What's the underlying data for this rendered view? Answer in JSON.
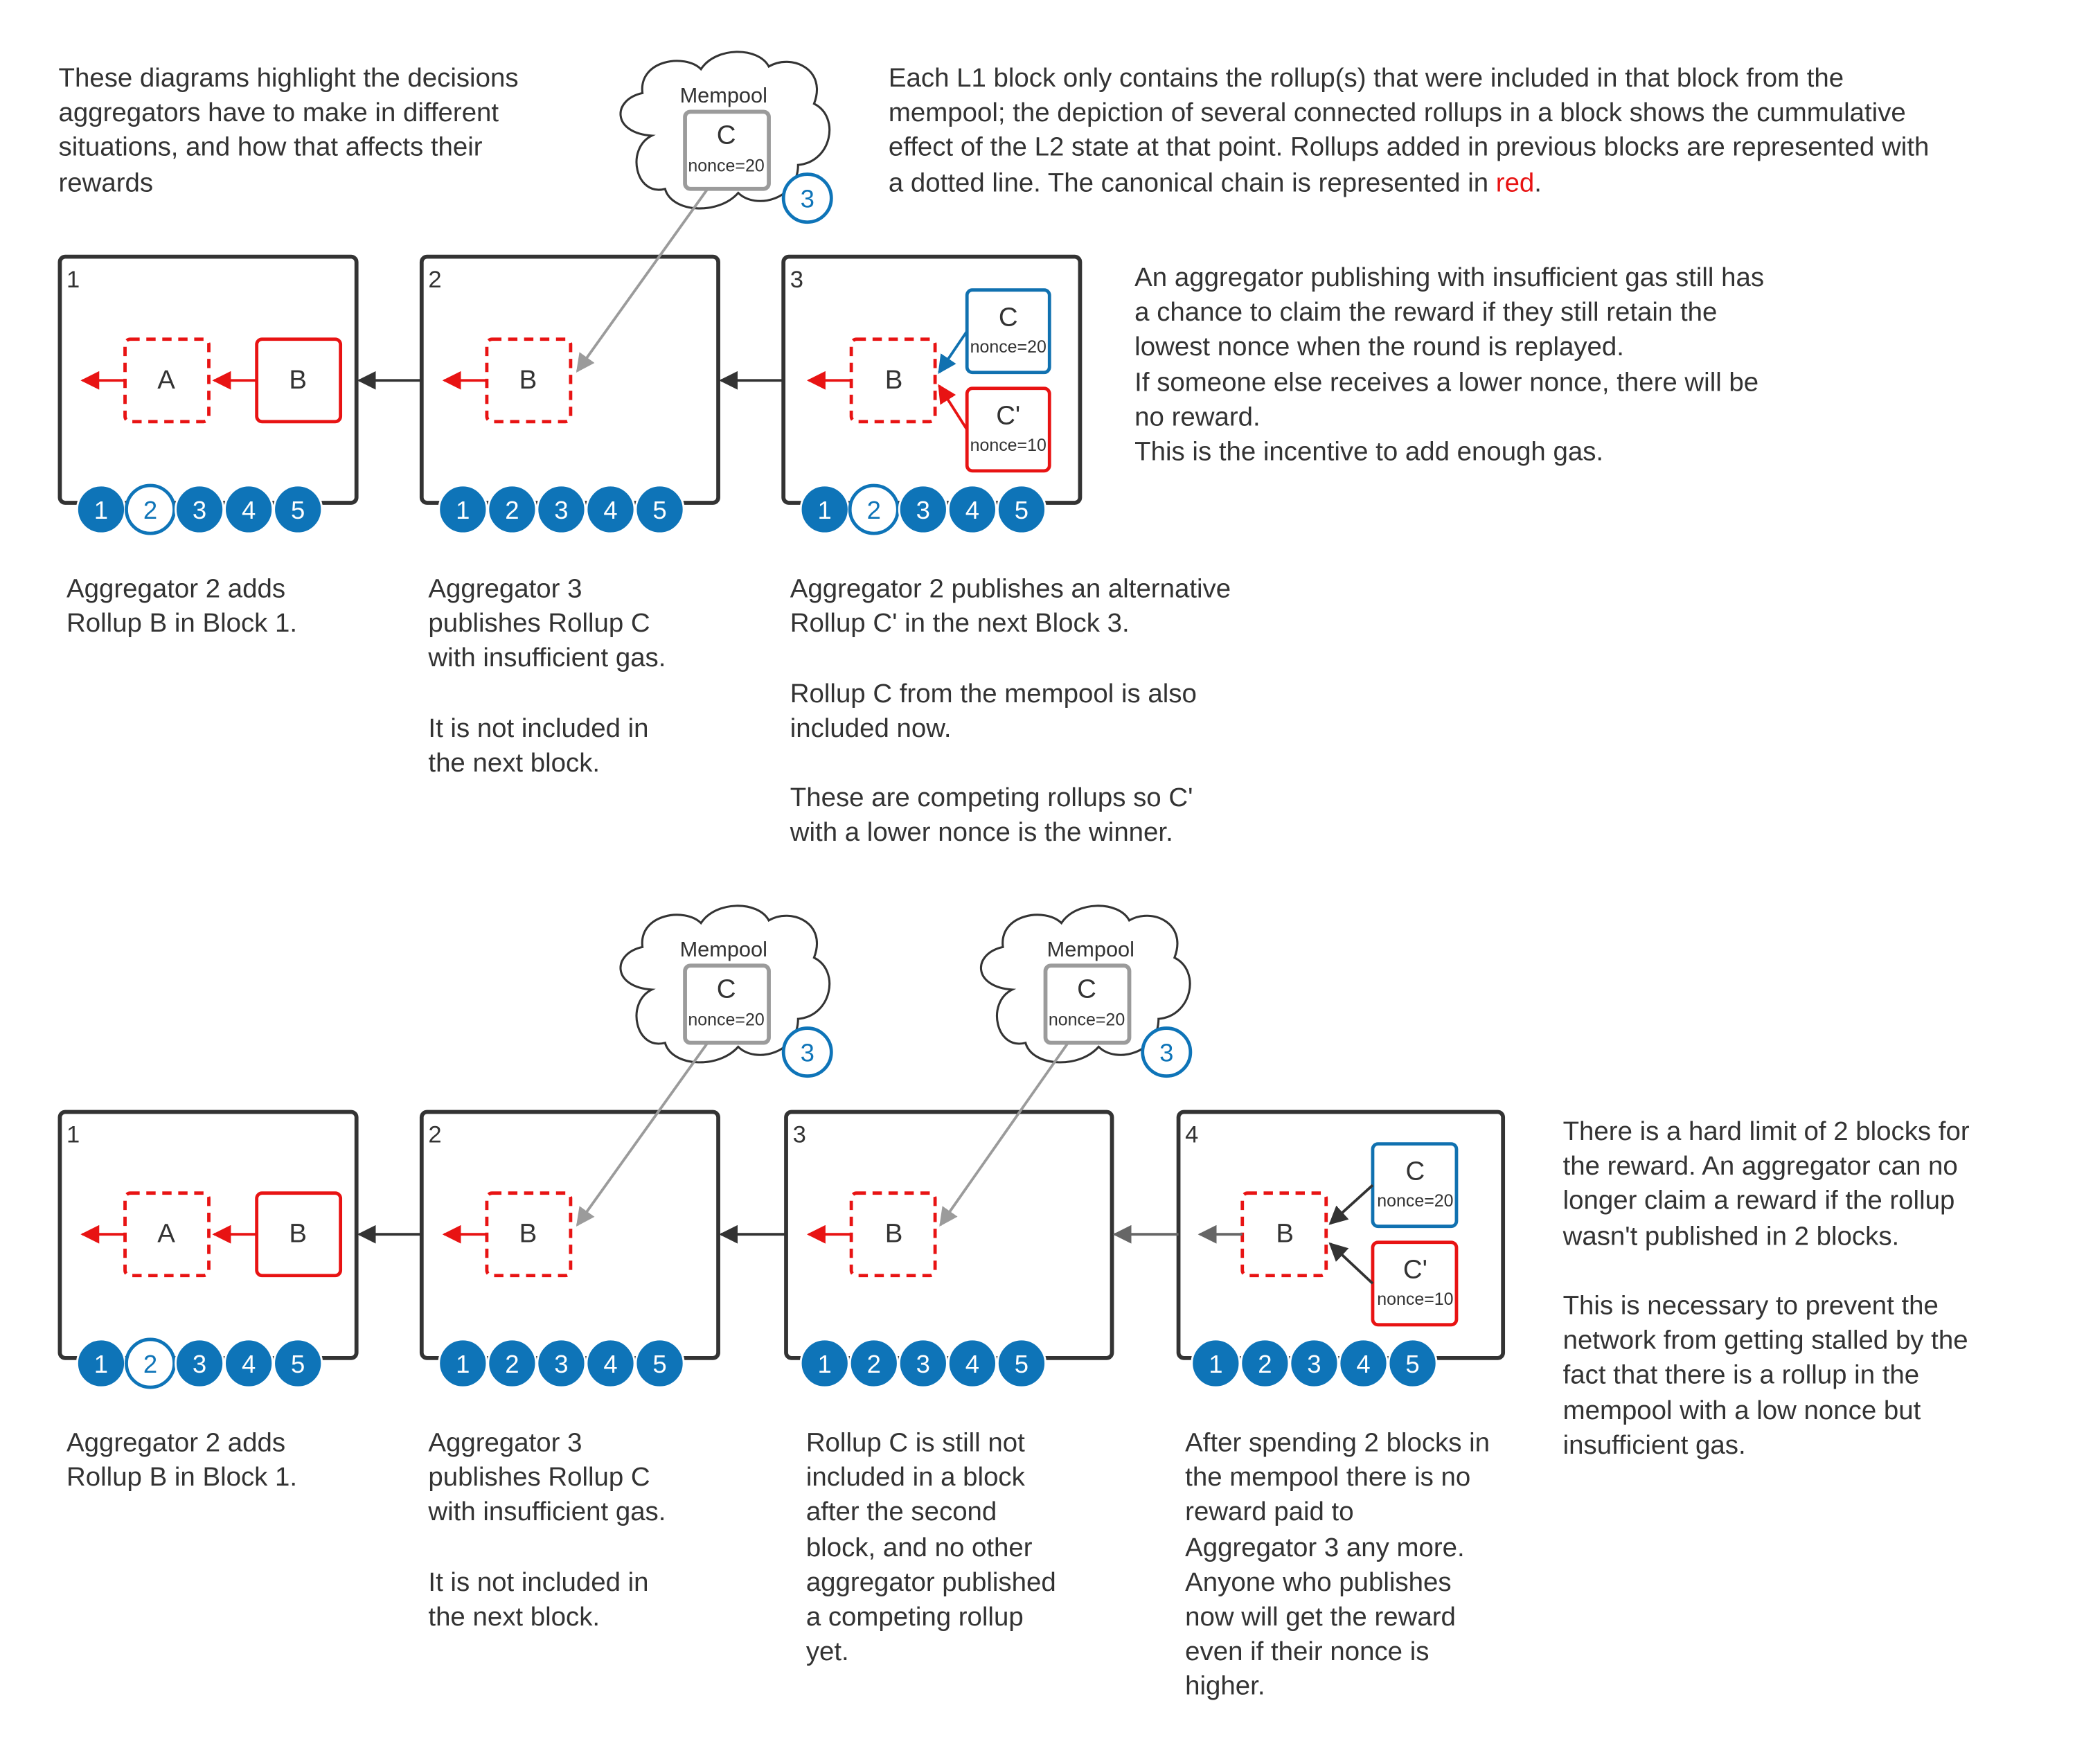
{
  "colors": {
    "canonical": "#e81313",
    "mempool_link": "#1071b0",
    "dot_fill": "#0e74b8",
    "block_border": "#333333",
    "text": "#333333",
    "grey": "#9b9b9b"
  },
  "icons": {
    "mempool": "cloud-icon",
    "aggregator_marker": "numbered-circle-icon"
  },
  "intro": {
    "text": "These diagrams highlight the decisions\naggregators have to make in different\nsituations, and how that affects their\nrewards"
  },
  "legend": {
    "text_before": "Each L1 block only contains the rollup(s) that were included in that block from the\nmempool; the depiction of several connected rollups in a block shows the cummulative\neffect of the L2 state at that point. Rollups added in previous blocks are represented with\na dotted line. The canonical chain is represented in ",
    "red_word": "red",
    "text_after": "."
  },
  "aggregators": [
    "1",
    "2",
    "3",
    "4",
    "5"
  ],
  "scenario1": {
    "mempool": {
      "label": "Mempool",
      "rollup": {
        "name": "C",
        "nonce": "nonce=20"
      },
      "aggregator": "3"
    },
    "blocks": [
      {
        "number": "1",
        "rollups": [
          {
            "name": "A",
            "prior": true
          },
          {
            "name": "B",
            "prior": false
          }
        ],
        "active_aggregator": "2"
      },
      {
        "number": "2",
        "rollups": [
          {
            "name": "B",
            "prior": true
          }
        ],
        "active_aggregator": ""
      },
      {
        "number": "3",
        "rollups": [
          {
            "name": "B",
            "prior": true
          },
          {
            "name": "C",
            "nonce": "nonce=20",
            "color": "blue"
          },
          {
            "name": "C'",
            "nonce": "nonce=10",
            "color": "red"
          }
        ],
        "active_aggregator": "2"
      }
    ],
    "captions": [
      "Aggregator 2 adds\nRollup B in Block 1.",
      "Aggregator 3\npublishes Rollup C\nwith insufficient gas.\n\nIt is not included in\nthe next block.",
      "Aggregator 2 publishes an alternative\nRollup C' in the next Block 3.\n\nRollup C from the mempool is also\nincluded now.\n\nThese are competing rollups so C'\nwith a lower nonce is the winner."
    ],
    "side_note": "An aggregator publishing with insufficient gas still has\na chance to claim the reward if they still retain the\nlowest nonce when the round is replayed.\nIf someone else receives a lower nonce, there will be\nno reward.\nThis is the incentive to add enough gas."
  },
  "scenario2": {
    "mempools": [
      {
        "label": "Mempool",
        "rollup": {
          "name": "C",
          "nonce": "nonce=20"
        },
        "aggregator": "3"
      },
      {
        "label": "Mempool",
        "rollup": {
          "name": "C",
          "nonce": "nonce=20"
        },
        "aggregator": "3"
      }
    ],
    "blocks": [
      {
        "number": "1",
        "rollups": [
          {
            "name": "A",
            "prior": true
          },
          {
            "name": "B",
            "prior": false
          }
        ],
        "active_aggregator": "2"
      },
      {
        "number": "2",
        "rollups": [
          {
            "name": "B",
            "prior": true
          }
        ],
        "active_aggregator": ""
      },
      {
        "number": "3",
        "rollups": [
          {
            "name": "B",
            "prior": true
          }
        ],
        "active_aggregator": ""
      },
      {
        "number": "4",
        "rollups": [
          {
            "name": "B",
            "prior": true
          },
          {
            "name": "C",
            "nonce": "nonce=20",
            "color": "blue"
          },
          {
            "name": "C'",
            "nonce": "nonce=10",
            "color": "red"
          }
        ],
        "active_aggregator": ""
      }
    ],
    "captions": [
      "Aggregator 2 adds\nRollup B in Block 1.",
      "Aggregator 3\npublishes Rollup C\nwith insufficient gas.\n\nIt is not included in\nthe next block.",
      "Rollup C is still not\nincluded in a block\nafter the second\nblock, and no other\naggregator published\na competing rollup\nyet.",
      "After spending 2 blocks in\nthe mempool there is no\nreward paid to\nAggregator 3 any more.\nAnyone who publishes\nnow will get the reward\neven if their nonce is\nhigher."
    ],
    "side_note": "There is a hard limit of 2 blocks for\nthe reward. An aggregator can no\nlonger claim a reward if the rollup\nwasn't published in 2 blocks.\n\nThis is necessary to prevent the\nnetwork from getting stalled by the\nfact that there is a rollup in the\nmempool with a low nonce but\ninsufficient gas."
  }
}
